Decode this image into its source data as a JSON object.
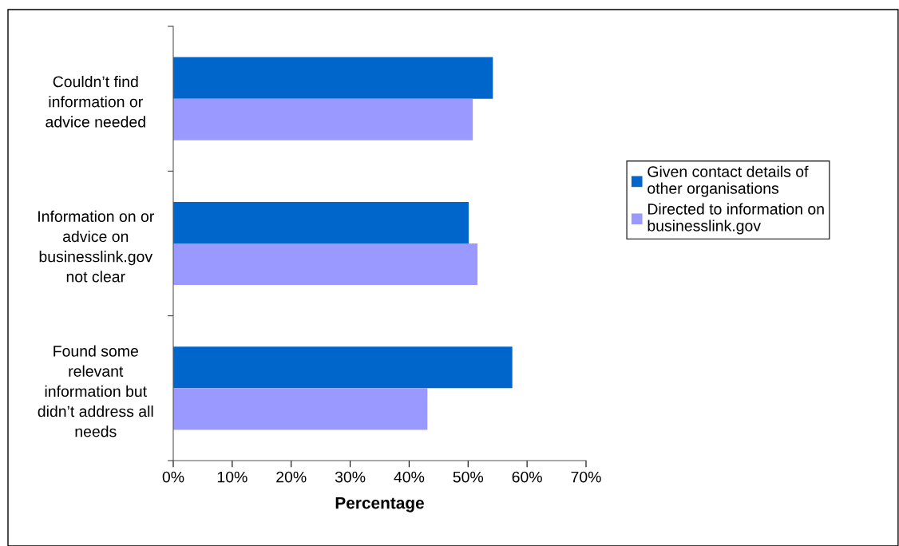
{
  "chart_data": {
    "type": "bar",
    "orientation": "horizontal",
    "xlabel": "Percentage",
    "categories": [
      "Couldn’t find information or advice needed",
      "Information on or advice on businesslink.gov not clear",
      "Found some relevant information but didn’t address all needs"
    ],
    "series": [
      {
        "name": "Given contact details of other organisations",
        "color": "#0066cc",
        "values": [
          54.2,
          50.1,
          57.5
        ]
      },
      {
        "name": "Directed to information on businesslink.gov",
        "color": "#9999ff",
        "values": [
          50.8,
          51.6,
          43.1
        ]
      }
    ],
    "xlim": [
      0,
      70
    ],
    "xticks": [
      {
        "value": 0,
        "label": "0%"
      },
      {
        "value": 10,
        "label": "10%"
      },
      {
        "value": 20,
        "label": "20%"
      },
      {
        "value": 30,
        "label": "30%"
      },
      {
        "value": 40,
        "label": "40%"
      },
      {
        "value": 50,
        "label": "50%"
      },
      {
        "value": 60,
        "label": "60%"
      },
      {
        "value": 70,
        "label": "70%"
      }
    ],
    "grid": false,
    "legend": "right"
  }
}
